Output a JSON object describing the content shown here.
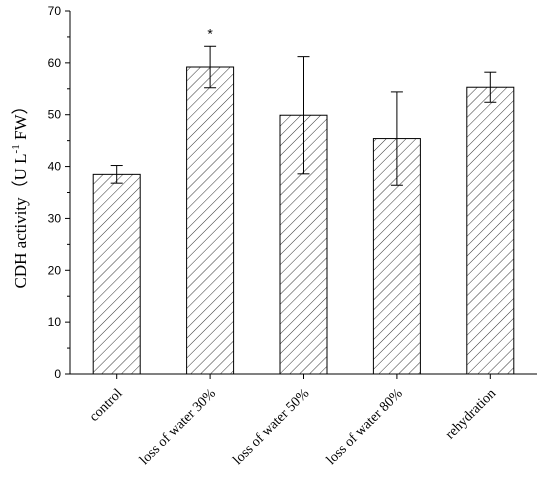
{
  "chart_data": {
    "type": "bar",
    "categories": [
      "control",
      "loss of water 30%",
      "loss of water 50%",
      "loss of water 80%",
      "rehydration"
    ],
    "values": [
      38.5,
      59.2,
      49.9,
      45.4,
      55.3
    ],
    "error": [
      1.7,
      4.0,
      11.3,
      9.0,
      2.9
    ],
    "annotations": [
      {
        "category": "loss of water 30%",
        "text": "*"
      }
    ],
    "title": "",
    "xlabel": "",
    "ylabel": {
      "main": "CDH activity（U L",
      "sup": "-1",
      "tail": " FW）"
    },
    "ylim": [
      0,
      70
    ],
    "yticks": [
      0,
      10,
      20,
      30,
      40,
      50,
      60,
      70
    ],
    "grid": false,
    "legend": "none",
    "bar_fill": "diagonal-hatch",
    "colors": {
      "stroke": "#000000",
      "hatch": "#000000",
      "background": "#ffffff"
    }
  }
}
